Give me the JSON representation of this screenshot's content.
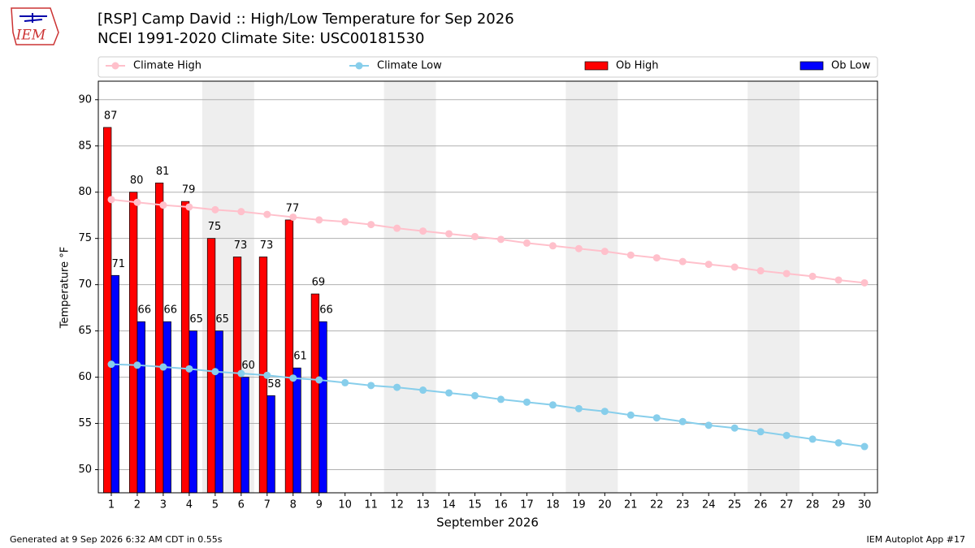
{
  "chart_data": {
    "type": "bar_line",
    "logo_text": "IEM",
    "title": "[RSP] Camp David :: High/Low Temperature for Sep 2026",
    "subtitle": "NCEI 1991-2020 Climate Site: USC00181530",
    "x_label": "September 2026",
    "y_label": "Temperature °F",
    "footer_left": "Generated at 9 Sep 2026 6:32 AM CDT in 0.55s",
    "footer_right": "IEM Autoplot App #17",
    "x": [
      1,
      2,
      3,
      4,
      5,
      6,
      7,
      8,
      9,
      10,
      11,
      12,
      13,
      14,
      15,
      16,
      17,
      18,
      19,
      20,
      21,
      22,
      23,
      24,
      25,
      26,
      27,
      28,
      29,
      30
    ],
    "xlim": [
      0.5,
      30.5
    ],
    "xticks": [
      1,
      2,
      3,
      4,
      5,
      6,
      7,
      8,
      9,
      10,
      11,
      12,
      13,
      14,
      15,
      16,
      17,
      18,
      19,
      20,
      21,
      22,
      23,
      24,
      25,
      26,
      27,
      28,
      29,
      30
    ],
    "ylim": [
      47.5,
      92
    ],
    "yticks": [
      50,
      55,
      60,
      65,
      70,
      75,
      80,
      85,
      90
    ],
    "grid": true,
    "highlight_spans": [
      [
        4.5,
        6.5
      ],
      [
        11.5,
        13.5
      ],
      [
        18.5,
        20.5
      ],
      [
        25.5,
        27.5
      ]
    ],
    "highlight_color": "#eeeeee",
    "series": [
      {
        "name": "Climate High",
        "kind": "line",
        "color": "#ffc0cb",
        "values": [
          79.2,
          78.9,
          78.6,
          78.4,
          78.1,
          77.9,
          77.6,
          77.3,
          77.0,
          76.8,
          76.5,
          76.1,
          75.8,
          75.5,
          75.2,
          74.9,
          74.5,
          74.2,
          73.9,
          73.6,
          73.2,
          72.9,
          72.5,
          72.2,
          71.9,
          71.5,
          71.2,
          70.9,
          70.5,
          70.2
        ]
      },
      {
        "name": "Climate Low",
        "kind": "line",
        "color": "#87ceeb",
        "values": [
          61.4,
          61.3,
          61.1,
          60.9,
          60.6,
          60.4,
          60.2,
          59.9,
          59.7,
          59.4,
          59.1,
          58.9,
          58.6,
          58.3,
          58.0,
          57.6,
          57.3,
          57.0,
          56.6,
          56.3,
          55.9,
          55.6,
          55.2,
          54.8,
          54.5,
          54.1,
          53.7,
          53.3,
          52.9,
          52.5
        ]
      },
      {
        "name": "Ob High",
        "kind": "bar",
        "color": "#ff0000",
        "values": [
          87,
          80,
          81,
          79,
          75,
          73,
          73,
          77,
          69,
          null,
          null,
          null,
          null,
          null,
          null,
          null,
          null,
          null,
          null,
          null,
          null,
          null,
          null,
          null,
          null,
          null,
          null,
          null,
          null,
          null
        ]
      },
      {
        "name": "Ob Low",
        "kind": "bar",
        "color": "#0000ff",
        "values": [
          71,
          66,
          66,
          65,
          65,
          60,
          58,
          61,
          66,
          null,
          null,
          null,
          null,
          null,
          null,
          null,
          null,
          null,
          null,
          null,
          null,
          null,
          null,
          null,
          null,
          null,
          null,
          null,
          null,
          null
        ]
      }
    ]
  }
}
